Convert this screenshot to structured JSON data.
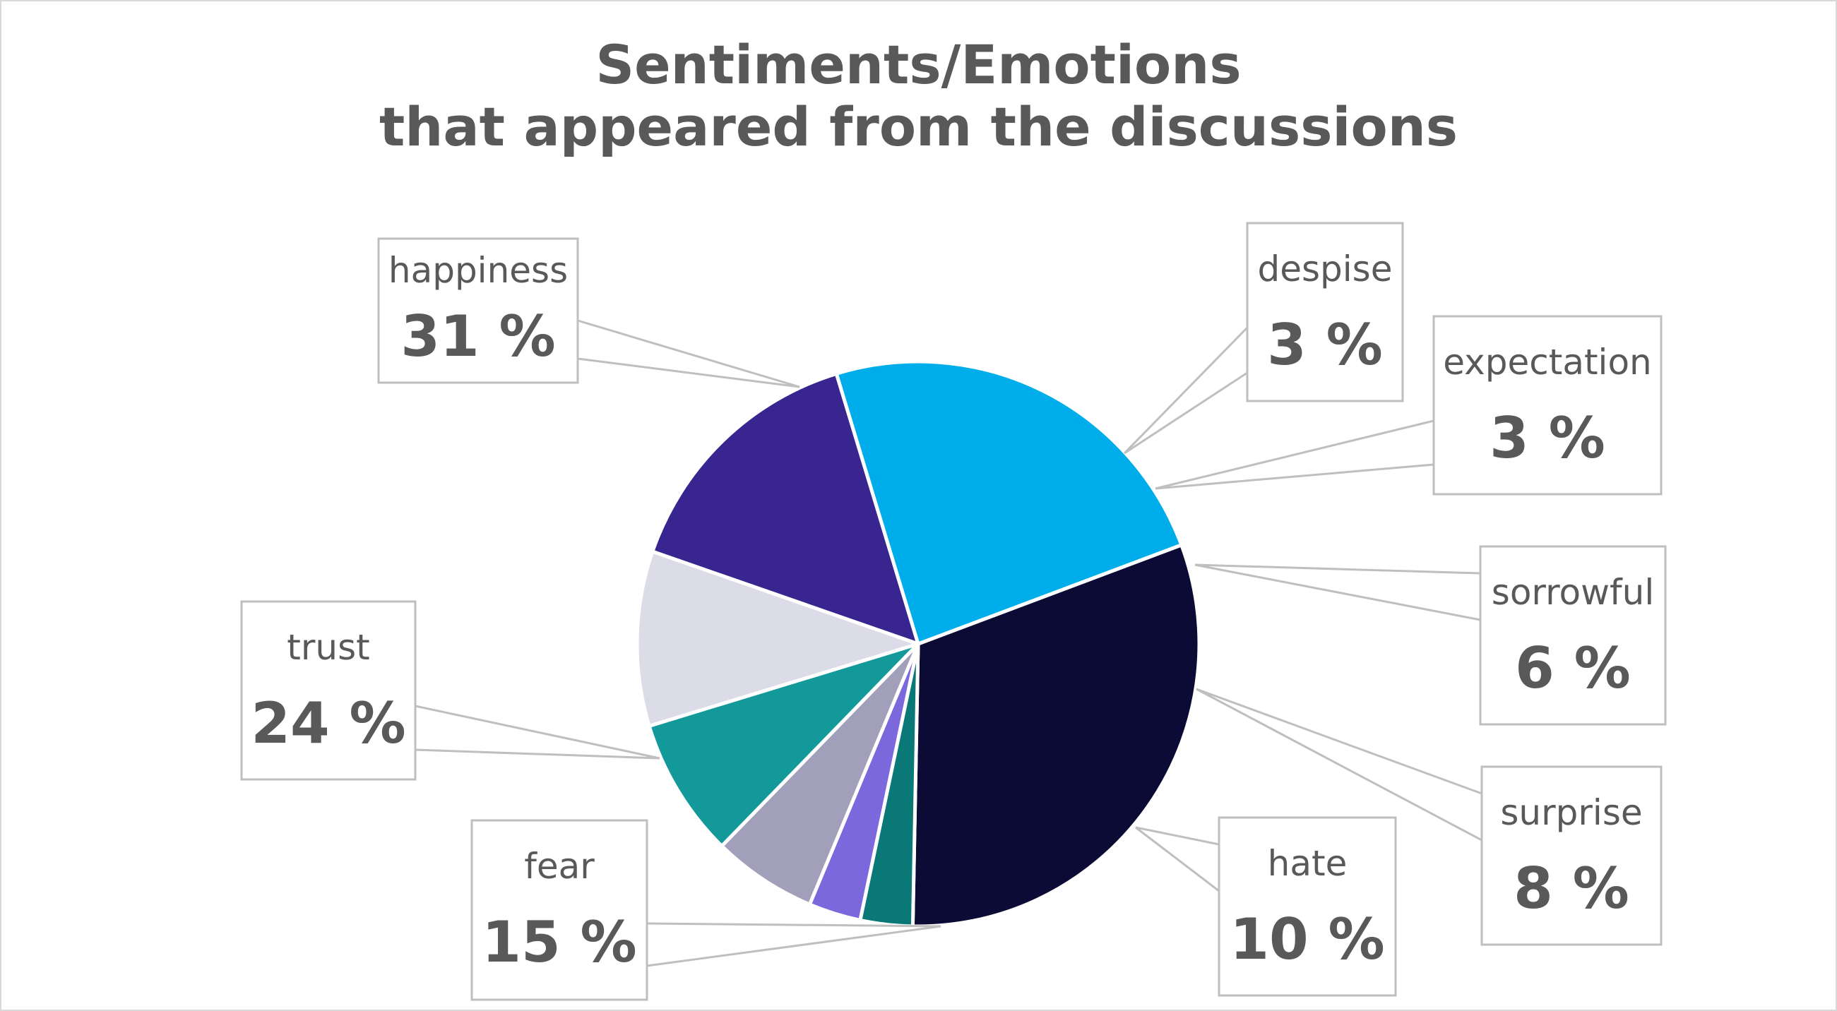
{
  "chart_data": {
    "type": "pie",
    "title": "Sentiments/Emotions",
    "subtitle": "that appeared from the discussions",
    "slices": [
      {
        "label": "happiness",
        "value": 31,
        "value_label": "31 %",
        "color": "#0b0b35"
      },
      {
        "label": "despise",
        "value": 3,
        "value_label": "3 %",
        "color": "#0a7876"
      },
      {
        "label": "expectation",
        "value": 3,
        "value_label": "3 %",
        "color": "#7b68dc"
      },
      {
        "label": "sorrowful",
        "value": 6,
        "value_label": "6 %",
        "color": "#a19fb9"
      },
      {
        "label": "surprise",
        "value": 8,
        "value_label": "8 %",
        "color": "#13999a"
      },
      {
        "label": "hate",
        "value": 10,
        "value_label": "10 %",
        "color": "#dcdbe8"
      },
      {
        "label": "fear",
        "value": 15,
        "value_label": "15 %",
        "color": "#38258f"
      },
      {
        "label": "trust",
        "value": 24,
        "value_label": "24 %",
        "color": "#00adeb"
      }
    ],
    "legend": "none",
    "data_labels": "callouts"
  }
}
